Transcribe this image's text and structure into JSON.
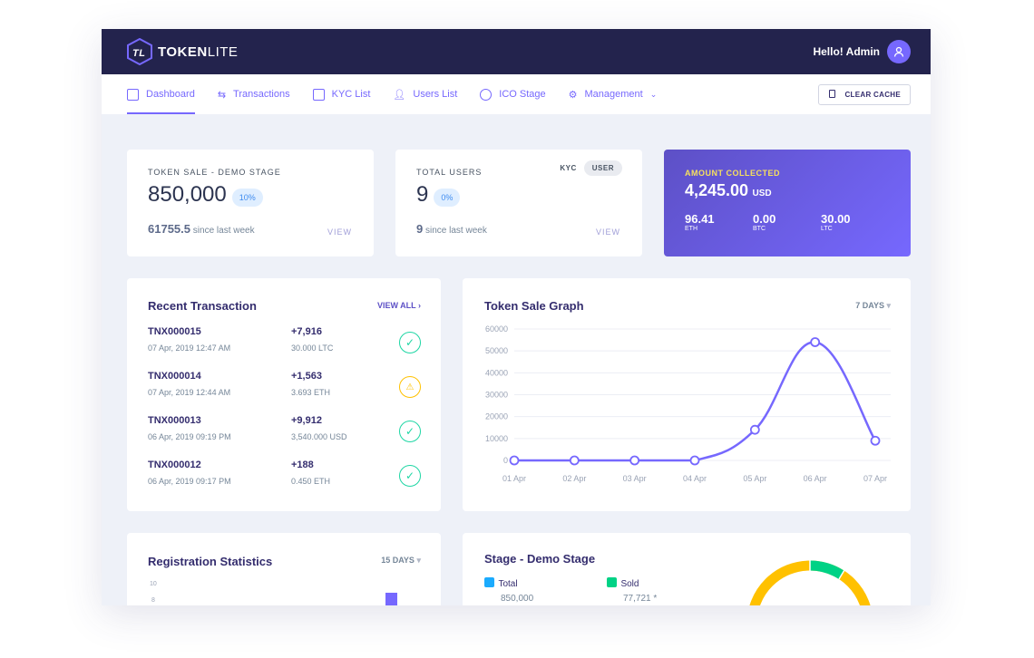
{
  "header": {
    "brand_bold": "TOKEN",
    "brand_light": "LITE",
    "greeting": "Hello! Admin"
  },
  "nav": {
    "items": [
      {
        "label": "Dashboard",
        "icon": "grid-icon"
      },
      {
        "label": "Transactions",
        "icon": "swap-icon"
      },
      {
        "label": "KYC List",
        "icon": "list-icon"
      },
      {
        "label": "Users List",
        "icon": "users-icon"
      },
      {
        "label": "ICO Stage",
        "icon": "coins-icon"
      },
      {
        "label": "Management",
        "icon": "gear-icon"
      }
    ],
    "clear_cache": "CLEAR CACHE"
  },
  "token_sale": {
    "label": "TOKEN SALE - DEMO STAGE",
    "value": "850,000",
    "badge": "10%",
    "since_value": "61755.5",
    "since_label": "since last week",
    "view": "VIEW"
  },
  "users": {
    "label": "TOTAL USERS",
    "tab_kyc": "KYC",
    "tab_user": "USER",
    "value": "9",
    "badge": "0%",
    "since_value": "9",
    "since_label": "since last week",
    "view": "VIEW"
  },
  "amount": {
    "label": "AMOUNT COLLECTED",
    "value": "4,245.00",
    "currency": "USD",
    "coins": [
      {
        "value": "96.41",
        "name": "ETH"
      },
      {
        "value": "0.00",
        "name": "BTC"
      },
      {
        "value": "30.00",
        "name": "LTC"
      }
    ]
  },
  "recent": {
    "title": "Recent Transaction",
    "view_all": "VIEW ALL",
    "rows": [
      {
        "id": "TNX000015",
        "date": "07 Apr, 2019 12:47 AM",
        "amount": "+7,916",
        "cur": "30.000 LTC",
        "status": "success"
      },
      {
        "id": "TNX000014",
        "date": "07 Apr, 2019 12:44 AM",
        "amount": "+1,563",
        "cur": "3.693 ETH",
        "status": "warning"
      },
      {
        "id": "TNX000013",
        "date": "06 Apr, 2019 09:19 PM",
        "amount": "+9,912",
        "cur": "3,540.000 USD",
        "status": "success"
      },
      {
        "id": "TNX000012",
        "date": "06 Apr, 2019 09:17 PM",
        "amount": "+188",
        "cur": "0.450 ETH",
        "status": "success"
      }
    ]
  },
  "graph": {
    "title": "Token Sale Graph",
    "range": "7 DAYS"
  },
  "chart_data": {
    "type": "line",
    "categories": [
      "01 Apr",
      "02 Apr",
      "03 Apr",
      "04 Apr",
      "05 Apr",
      "06 Apr",
      "07 Apr"
    ],
    "values": [
      0,
      0,
      0,
      0,
      14000,
      54000,
      9000
    ],
    "ylim": [
      0,
      60000
    ],
    "yticks": [
      0,
      10000,
      20000,
      30000,
      40000,
      50000,
      60000
    ],
    "grid": true,
    "color": "#7668fe"
  },
  "registration": {
    "title": "Registration Statistics",
    "range": "15 DAYS",
    "yticks": [
      "10",
      "8"
    ]
  },
  "stage": {
    "title": "Stage - Demo Stage",
    "total_label": "Total",
    "total_value": "850,000",
    "sold_label": "Sold",
    "sold_value": "77,721 *",
    "colors": {
      "total": "#1babfe",
      "sold": "#00d285",
      "remaining": "#ffc100"
    }
  }
}
